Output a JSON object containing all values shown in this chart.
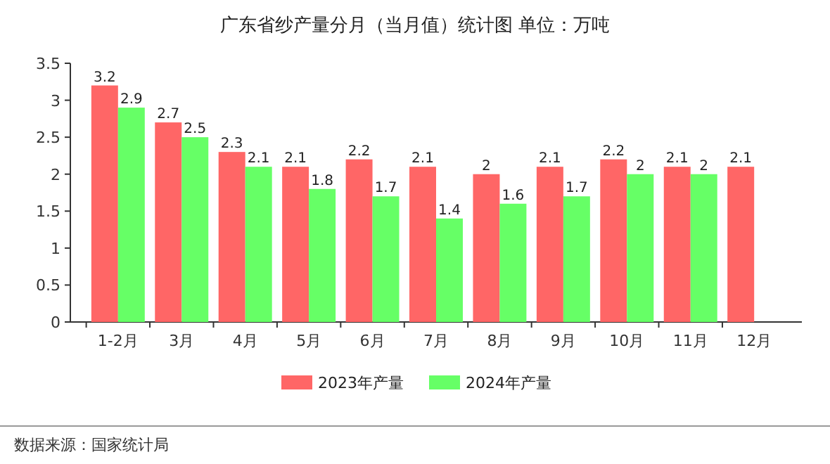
{
  "chart_data": {
    "type": "bar",
    "title": "广东省纱产量分月（当月值）统计图 单位：万吨",
    "categories": [
      "1-2月",
      "3月",
      "4月",
      "5月",
      "6月",
      "7月",
      "8月",
      "9月",
      "10月",
      "11月",
      "12月"
    ],
    "series": [
      {
        "name": "2023年产量",
        "color": "#ff6666",
        "values": [
          3.2,
          2.7,
          2.3,
          2.1,
          2.2,
          2.1,
          2,
          2.1,
          2.2,
          2.1,
          2.1
        ]
      },
      {
        "name": "2024年产量",
        "color": "#66ff66",
        "values": [
          2.9,
          2.5,
          2.1,
          1.8,
          1.7,
          1.4,
          1.6,
          1.7,
          2,
          2,
          null
        ]
      }
    ],
    "ylim": [
      0,
      3.5
    ],
    "yticks": [
      0,
      0.5,
      1,
      1.5,
      2,
      2.5,
      3,
      3.5
    ],
    "grid": false,
    "legend": "bottom",
    "data_labels": true,
    "annotations": [
      "数据来源：国家统计局"
    ]
  }
}
